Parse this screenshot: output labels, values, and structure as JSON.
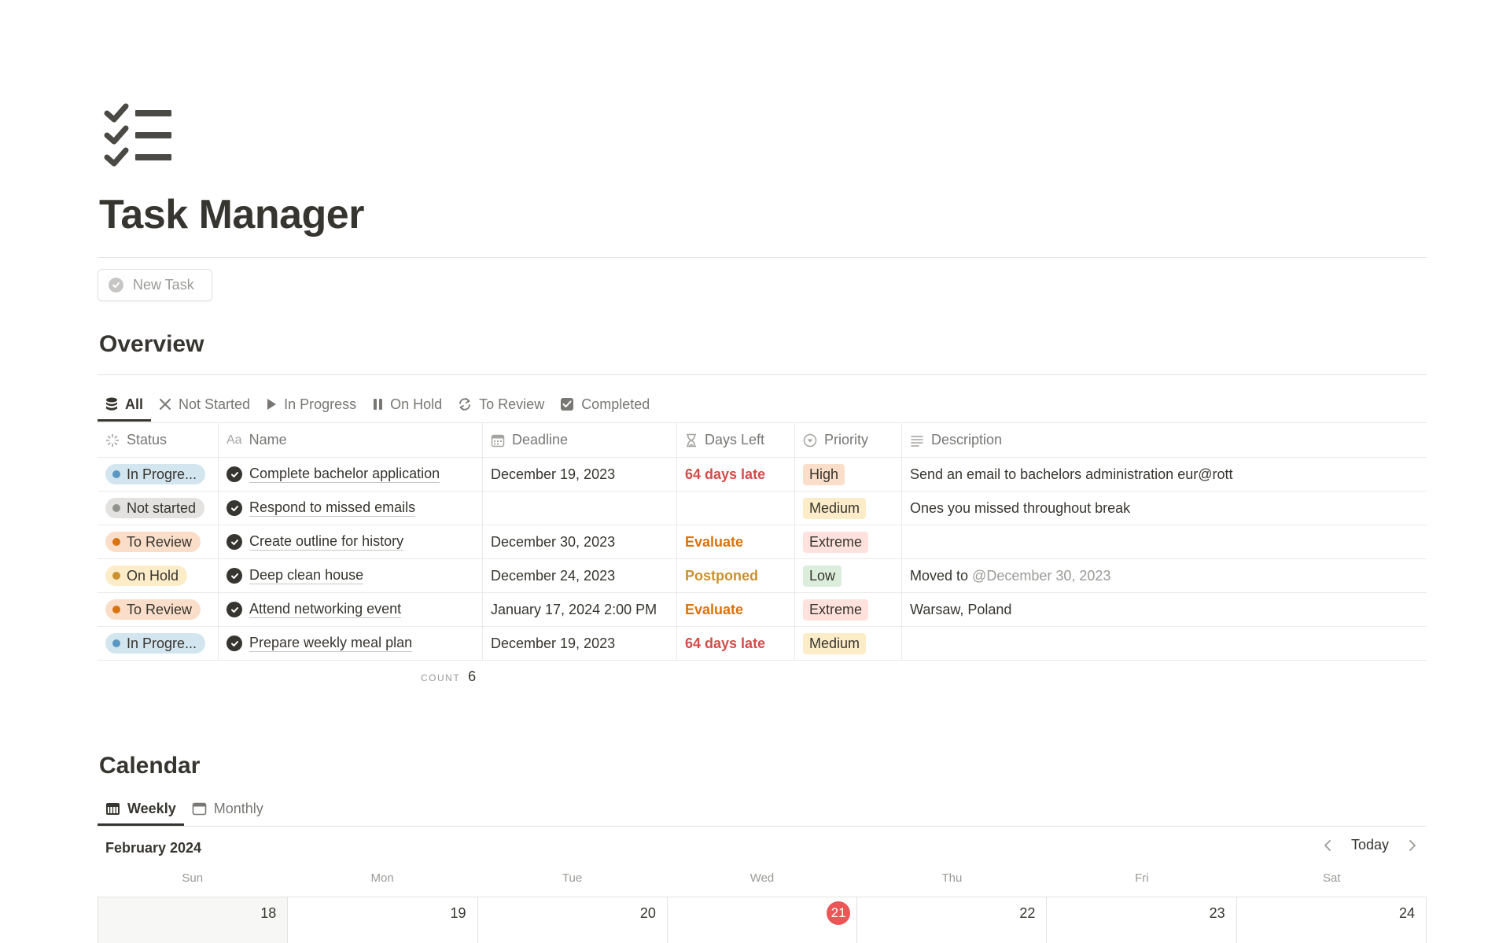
{
  "page": {
    "icon": "checklist-icon",
    "title": "Task Manager",
    "new_task_label": "New Task"
  },
  "overview": {
    "title": "Overview",
    "tabs": [
      {
        "label": "All",
        "icon": "database-icon"
      },
      {
        "label": "Not Started",
        "icon": "x-icon"
      },
      {
        "label": "In Progress",
        "icon": "play-icon"
      },
      {
        "label": "On Hold",
        "icon": "pause-icon"
      },
      {
        "label": "To Review",
        "icon": "refresh-icon"
      },
      {
        "label": "Completed",
        "icon": "checkbox-icon"
      }
    ],
    "columns": {
      "status": "Status",
      "name": "Name",
      "deadline": "Deadline",
      "days_left": "Days Left",
      "priority": "Priority",
      "description": "Description"
    },
    "rows": [
      {
        "status": "In Progre...",
        "name": "Complete bachelor application",
        "deadline": "December 19, 2023",
        "days_left": "64 days late",
        "priority": "High",
        "description": "Send an email to bachelors administration eur@rott",
        "mention": ""
      },
      {
        "status": "Not started",
        "name": "Respond to missed emails",
        "deadline": "",
        "days_left": "",
        "priority": "Medium",
        "description": "Ones you missed throughout break",
        "mention": ""
      },
      {
        "status": "To Review",
        "name": "Create outline for history",
        "deadline": "December 30, 2023",
        "days_left": "Evaluate",
        "priority": "Extreme",
        "description": "",
        "mention": ""
      },
      {
        "status": "On Hold",
        "name": "Deep clean house",
        "deadline": "December 24, 2023",
        "days_left": "Postponed",
        "priority": "Low",
        "description": "Moved to ",
        "mention": "@December 30, 2023"
      },
      {
        "status": "To Review",
        "name": "Attend networking event",
        "deadline": "January 17, 2024 2:00 PM",
        "days_left": "Evaluate",
        "priority": "Extreme",
        "description": "Warsaw, Poland",
        "mention": ""
      },
      {
        "status": "In Progre...",
        "name": "Prepare weekly meal plan",
        "deadline": "December 19, 2023",
        "days_left": "64 days late",
        "priority": "Medium",
        "description": "",
        "mention": ""
      }
    ],
    "count_label": "COUNT",
    "count_value": "6"
  },
  "calendar": {
    "title": "Calendar",
    "tabs": [
      {
        "label": "Weekly",
        "icon": "calendar-week-icon"
      },
      {
        "label": "Monthly",
        "icon": "calendar-icon"
      }
    ],
    "month": "February 2024",
    "today_label": "Today",
    "weekdays": [
      "Sun",
      "Mon",
      "Tue",
      "Wed",
      "Thu",
      "Fri",
      "Sat"
    ],
    "days": [
      "18",
      "19",
      "20",
      "21",
      "22",
      "23",
      "24"
    ],
    "today_day": "21"
  },
  "colors": {
    "status": {
      "In Progre...": {
        "bg": "#d3e5ef",
        "dot": "#5a97c2"
      },
      "Not started": {
        "bg": "#e3e2e0",
        "dot": "#91918e"
      },
      "To Review": {
        "bg": "#fadec9",
        "dot": "#d9730d"
      },
      "On Hold": {
        "bg": "#fdecc8",
        "dot": "#cb912f"
      }
    },
    "priority": {
      "High": "#fadec9",
      "Medium": "#fdecc8",
      "Extreme": "#ffe2dd",
      "Low": "#dbeddb"
    },
    "days_left": {
      "64 days late": "#d44c47",
      "Evaluate": "#d9730d",
      "Postponed": "#cb912f"
    },
    "today": "#eb5757"
  }
}
